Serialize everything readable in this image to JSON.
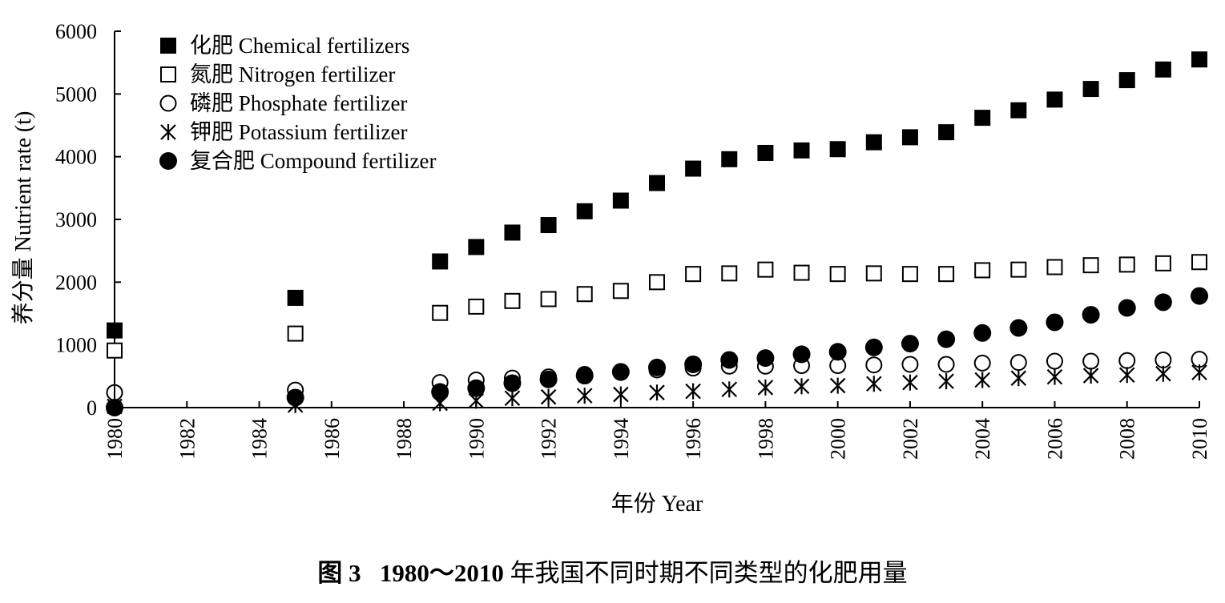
{
  "caption": {
    "figure_no": "图 3",
    "range": "1980～2010",
    "text": " 年我国不同时期不同类型的化肥用量"
  },
  "chart_data": {
    "type": "scatter",
    "xlabel": "年份 Year",
    "ylabel": "养分量 Nutrient rate (t)",
    "xlim": [
      1980,
      2010
    ],
    "ylim": [
      0,
      6000
    ],
    "x_ticks": [
      "1980",
      "1982",
      "1984",
      "1986",
      "1988",
      "1990",
      "1992",
      "1994",
      "1996",
      "1998",
      "2000",
      "2002",
      "2004",
      "2006",
      "2008",
      "2010"
    ],
    "y_ticks": [
      "0",
      "1000",
      "2000",
      "3000",
      "4000",
      "5000",
      "6000"
    ],
    "legend_position": "top-left",
    "grid": false,
    "series": [
      {
        "name": "化肥 Chemical fertilizers",
        "marker": "filled-square",
        "x": [
          1980,
          1985,
          1989,
          1990,
          1991,
          1992,
          1993,
          1994,
          1995,
          1996,
          1997,
          1998,
          1999,
          2000,
          2001,
          2002,
          2003,
          2004,
          2005,
          2006,
          2007,
          2008,
          2009,
          2010
        ],
        "y": [
          1230,
          1750,
          2330,
          2560,
          2790,
          2910,
          3130,
          3300,
          3580,
          3810,
          3960,
          4060,
          4100,
          4120,
          4230,
          4310,
          4390,
          4620,
          4740,
          4910,
          5080,
          5220,
          5390,
          5550
        ]
      },
      {
        "name": "氮肥 Nitrogen fertilizer",
        "marker": "open-square",
        "x": [
          1980,
          1985,
          1989,
          1990,
          1991,
          1992,
          1993,
          1994,
          1995,
          1996,
          1997,
          1998,
          1999,
          2000,
          2001,
          2002,
          2003,
          2004,
          2005,
          2006,
          2007,
          2008,
          2009,
          2010
        ],
        "y": [
          910,
          1180,
          1510,
          1610,
          1700,
          1730,
          1810,
          1860,
          2000,
          2130,
          2140,
          2200,
          2150,
          2130,
          2140,
          2130,
          2130,
          2190,
          2200,
          2240,
          2270,
          2280,
          2300,
          2320
        ]
      },
      {
        "name": "磷肥 Phosphate fertilizer",
        "marker": "open-circle",
        "x": [
          1980,
          1985,
          1989,
          1990,
          1991,
          1992,
          1993,
          1994,
          1995,
          1996,
          1997,
          1998,
          1999,
          2000,
          2001,
          2002,
          2003,
          2004,
          2005,
          2006,
          2007,
          2008,
          2009,
          2010
        ],
        "y": [
          240,
          280,
          400,
          440,
          470,
          490,
          530,
          560,
          600,
          630,
          660,
          660,
          670,
          670,
          680,
          690,
          690,
          710,
          720,
          740,
          740,
          750,
          760,
          770
        ]
      },
      {
        "name": "钾肥 Potassium fertilizer",
        "marker": "asterisk",
        "x": [
          1980,
          1985,
          1989,
          1990,
          1991,
          1992,
          1993,
          1994,
          1995,
          1996,
          1997,
          1998,
          1999,
          2000,
          2001,
          2002,
          2003,
          2004,
          2005,
          2006,
          2007,
          2008,
          2009,
          2010
        ],
        "y": [
          20,
          40,
          70,
          110,
          150,
          170,
          190,
          210,
          240,
          260,
          290,
          320,
          340,
          350,
          380,
          400,
          420,
          440,
          470,
          490,
          510,
          520,
          540,
          560
        ]
      },
      {
        "name": "复合肥 Compound fertilizer",
        "marker": "filled-circle",
        "x": [
          1980,
          1985,
          1989,
          1990,
          1991,
          1992,
          1993,
          1994,
          1995,
          1996,
          1997,
          1998,
          1999,
          2000,
          2001,
          2002,
          2003,
          2004,
          2005,
          2006,
          2007,
          2008,
          2009,
          2010
        ],
        "y": [
          0,
          160,
          250,
          310,
          390,
          450,
          510,
          570,
          640,
          690,
          760,
          790,
          850,
          890,
          960,
          1020,
          1090,
          1190,
          1270,
          1360,
          1480,
          1590,
          1680,
          1780
        ]
      }
    ]
  }
}
